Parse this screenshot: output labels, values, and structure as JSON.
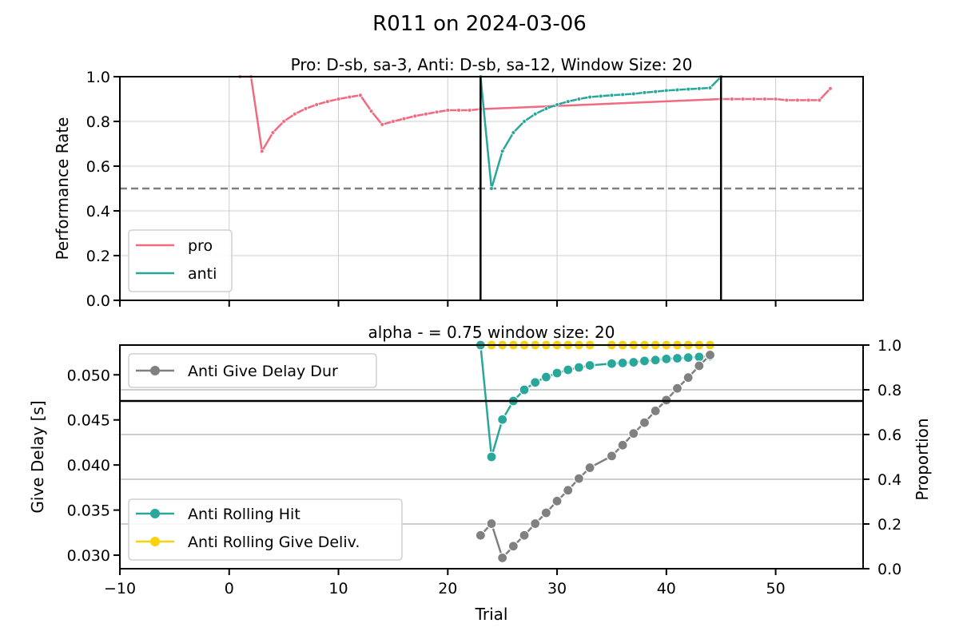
{
  "figure_title": "R011 on 2024-03-06",
  "colors": {
    "pro": "#f06a80",
    "anti": "#2aa79b",
    "gray": "#808080",
    "yellow": "#f8d30d",
    "grid": "#cccccc",
    "ref": "#808080"
  },
  "chart_data": [
    {
      "type": "line",
      "title": "Pro: D-sb, sa-3, Anti: D-sb, sa-12, Window Size: 20",
      "xlabel": "",
      "ylabel": "Performance Rate",
      "xlim": [
        -10,
        58
      ],
      "ylim": [
        0,
        1
      ],
      "yticks": [
        "0.0",
        "0.2",
        "0.4",
        "0.6",
        "0.8",
        "1.0"
      ],
      "grid": true,
      "legend_position": "lower-left",
      "reference_line": {
        "y": 0.5,
        "style": "dashed"
      },
      "vertical_lines": [
        23,
        45
      ],
      "series": [
        {
          "name": "pro",
          "x": [
            1,
            2,
            3,
            4,
            5,
            6,
            7,
            8,
            9,
            10,
            11,
            12,
            13,
            14,
            15,
            16,
            17,
            18,
            19,
            20,
            21,
            22,
            23,
            45,
            46,
            47,
            48,
            49,
            50,
            51,
            52,
            53,
            54,
            55
          ],
          "y": [
            1.0,
            1.0,
            0.667,
            0.75,
            0.8,
            0.833,
            0.857,
            0.875,
            0.889,
            0.9,
            0.909,
            0.917,
            0.846,
            0.786,
            0.8,
            0.812,
            0.824,
            0.833,
            0.842,
            0.85,
            0.85,
            0.85,
            0.855,
            0.9,
            0.9,
            0.9,
            0.9,
            0.9,
            0.9,
            0.895,
            0.895,
            0.895,
            0.895,
            0.947
          ]
        },
        {
          "name": "anti",
          "x": [
            23,
            24,
            25,
            26,
            27,
            28,
            29,
            30,
            31,
            32,
            33,
            34,
            35,
            36,
            37,
            38,
            39,
            40,
            41,
            42,
            43,
            44,
            45
          ],
          "y": [
            1.0,
            0.5,
            0.667,
            0.75,
            0.8,
            0.833,
            0.857,
            0.875,
            0.889,
            0.9,
            0.909,
            0.913,
            0.917,
            0.92,
            0.923,
            0.929,
            0.933,
            0.938,
            0.941,
            0.944,
            0.947,
            0.95,
            1.0
          ]
        }
      ]
    },
    {
      "type": "line",
      "title": "alpha - = 0.75 window size: 20",
      "xlabel": "Trial",
      "ylabel": "Give Delay [s]",
      "ylabel_right": "Proportion",
      "xlim": [
        -10,
        58
      ],
      "xticks": [
        "−10",
        "0",
        "10",
        "20",
        "30",
        "40",
        "50"
      ],
      "ylim": [
        0.0285,
        0.0533
      ],
      "yticks": [
        "0.030",
        "0.035",
        "0.040",
        "0.045",
        "0.050"
      ],
      "ylim_right": [
        0,
        1
      ],
      "yticks_right": [
        "0.0",
        "0.2",
        "0.4",
        "0.6",
        "0.8",
        "1.0"
      ],
      "grid": true,
      "reference_line_right": {
        "y": 0.75,
        "style": "solid"
      },
      "legend_left_position": "upper-left",
      "legend_right_position": "lower-left",
      "series": [
        {
          "name": "Anti Give Delay Dur",
          "axis": "left",
          "x": [
            23,
            24,
            25,
            26,
            27,
            28,
            29,
            30,
            31,
            32,
            33,
            35,
            36,
            37,
            38,
            39,
            40,
            41,
            42,
            43,
            44
          ],
          "y": [
            0.0322,
            0.0335,
            0.0297,
            0.031,
            0.0322,
            0.0335,
            0.0347,
            0.036,
            0.0372,
            0.0385,
            0.0397,
            0.041,
            0.0422,
            0.0435,
            0.0447,
            0.046,
            0.0472,
            0.0485,
            0.0497,
            0.051,
            0.0522
          ]
        },
        {
          "name": "Anti Rolling Hit",
          "axis": "right",
          "x": [
            23,
            24,
            25,
            26,
            27,
            28,
            29,
            30,
            31,
            32,
            33,
            35,
            36,
            37,
            38,
            39,
            40,
            41,
            42,
            43,
            44
          ],
          "y": [
            1.0,
            0.5,
            0.667,
            0.75,
            0.8,
            0.833,
            0.857,
            0.875,
            0.889,
            0.9,
            0.909,
            0.917,
            0.92,
            0.923,
            0.929,
            0.933,
            0.938,
            0.941,
            0.944,
            0.947,
            0.95
          ]
        },
        {
          "name": "Anti Rolling Give Deliv.",
          "axis": "right",
          "x": [
            23,
            24,
            25,
            26,
            27,
            28,
            29,
            30,
            31,
            32,
            33,
            35,
            36,
            37,
            38,
            39,
            40,
            41,
            42,
            43,
            44
          ],
          "y": [
            1,
            1,
            1,
            1,
            1,
            1,
            1,
            1,
            1,
            1,
            1,
            1,
            1,
            1,
            1,
            1,
            1,
            1,
            1,
            1,
            1
          ]
        }
      ]
    }
  ]
}
